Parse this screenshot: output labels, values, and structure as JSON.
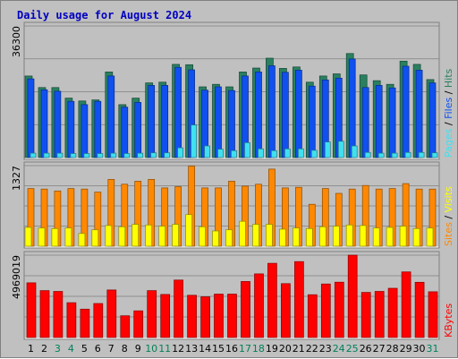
{
  "title": "Daily usage for August 2024",
  "colors": {
    "background": "#c0c0c0",
    "panel": "#c0c0c0",
    "hits": "#2a8060",
    "files": "#1050f0",
    "pages": "#40e0f0",
    "visits": "#ffff00",
    "sites": "#ff8800",
    "kbytes": "#ff0000",
    "weekend_day": "#00805a",
    "weekday": "#000000"
  },
  "chart_data": [
    {
      "type": "bar",
      "panel": "hits-files-pages",
      "categories": [
        "1",
        "2",
        "3",
        "4",
        "5",
        "6",
        "7",
        "8",
        "9",
        "10",
        "11",
        "12",
        "13",
        "14",
        "15",
        "16",
        "17",
        "18",
        "19",
        "20",
        "21",
        "22",
        "23",
        "24",
        "25",
        "26",
        "27",
        "28",
        "29",
        "30",
        "31"
      ],
      "y_tick_label": "36300",
      "ylim": [
        0,
        36300
      ],
      "right_labels": [
        "Pages",
        "Files",
        "Hits"
      ],
      "series": [
        {
          "name": "Hits",
          "values": [
            22500,
            19300,
            19300,
            16400,
            15600,
            15900,
            23600,
            14600,
            16400,
            20600,
            20800,
            25700,
            25600,
            19500,
            20200,
            19500,
            23600,
            24700,
            27400,
            24600,
            25000,
            20800,
            22500,
            23100,
            28700,
            22800,
            21200,
            20200,
            26600,
            25700,
            21500
          ]
        },
        {
          "name": "Files",
          "values": [
            21700,
            18700,
            18300,
            15500,
            14600,
            15500,
            22500,
            13900,
            15200,
            19900,
            19900,
            24900,
            24200,
            18600,
            19500,
            18500,
            22500,
            23600,
            25300,
            23500,
            24100,
            19700,
            21400,
            21900,
            27200,
            19300,
            19900,
            19200,
            25200,
            24100,
            20600
          ]
        },
        {
          "name": "Pages",
          "values": [
            1200,
            1200,
            1200,
            1100,
            1100,
            1100,
            1200,
            1100,
            1200,
            1300,
            1300,
            2700,
            9000,
            3200,
            2300,
            1900,
            4100,
            2400,
            1900,
            2400,
            2400,
            2000,
            4300,
            4500,
            3200,
            1400,
            1200,
            1200,
            1400,
            1400,
            1300
          ]
        }
      ]
    },
    {
      "type": "bar",
      "panel": "visits-sites",
      "categories": [
        "1",
        "2",
        "3",
        "4",
        "5",
        "6",
        "7",
        "8",
        "9",
        "10",
        "11",
        "12",
        "13",
        "14",
        "15",
        "16",
        "17",
        "18",
        "19",
        "20",
        "21",
        "22",
        "23",
        "24",
        "25",
        "26",
        "27",
        "28",
        "29",
        "30",
        "31"
      ],
      "y_tick_label": "1327",
      "ylim": [
        0,
        1327
      ],
      "right_labels": [
        "Sites",
        "Visits"
      ],
      "series": [
        {
          "name": "Sites",
          "values": [
            950,
            940,
            910,
            950,
            940,
            890,
            1100,
            1020,
            1070,
            1100,
            960,
            980,
            1320,
            960,
            960,
            1070,
            990,
            1020,
            1270,
            960,
            970,
            690,
            950,
            870,
            940,
            1000,
            940,
            950,
            1030,
            940,
            940
          ]
        },
        {
          "name": "Visits",
          "values": [
            310,
            300,
            290,
            300,
            210,
            270,
            340,
            320,
            360,
            350,
            330,
            360,
            520,
            320,
            250,
            270,
            410,
            360,
            360,
            280,
            300,
            290,
            320,
            330,
            350,
            340,
            300,
            310,
            330,
            290,
            300
          ]
        }
      ]
    },
    {
      "type": "bar",
      "panel": "kbytes",
      "categories": [
        "1",
        "2",
        "3",
        "4",
        "5",
        "6",
        "7",
        "8",
        "9",
        "10",
        "11",
        "12",
        "13",
        "14",
        "15",
        "16",
        "17",
        "18",
        "19",
        "20",
        "21",
        "22",
        "23",
        "24",
        "25",
        "26",
        "27",
        "28",
        "29",
        "30",
        "31"
      ],
      "y_tick_label": "4969019",
      "ylim": [
        0,
        4969019
      ],
      "right_labels": [
        "KBytes"
      ],
      "series": [
        {
          "name": "KBytes",
          "values": [
            3300000,
            2830000,
            2780000,
            2100000,
            1710000,
            2050000,
            2870000,
            1310000,
            1610000,
            2830000,
            2600000,
            3470000,
            2550000,
            2460000,
            2620000,
            2620000,
            3380000,
            3840000,
            4480000,
            3250000,
            4580000,
            2580000,
            3230000,
            3340000,
            4969019,
            2720000,
            2780000,
            2970000,
            3960000,
            3330000,
            2760000
          ]
        }
      ]
    }
  ]
}
